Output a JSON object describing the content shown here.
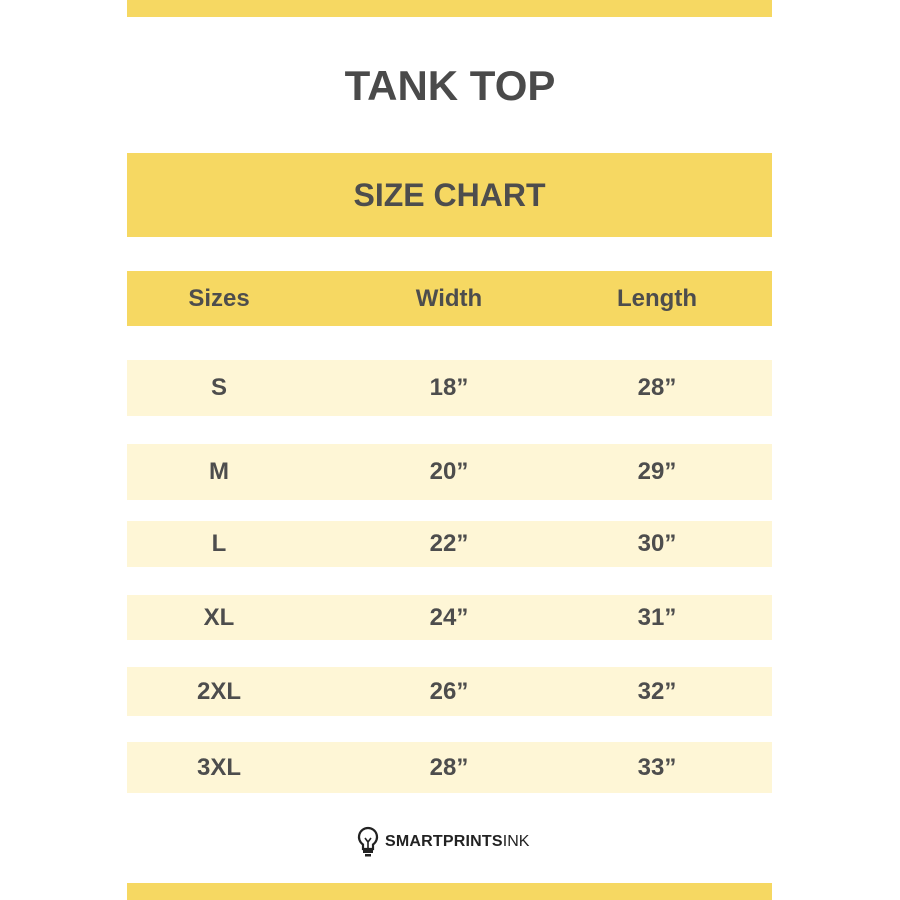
{
  "title": "TANK TOP",
  "subtitle": "SIZE CHART",
  "table": {
    "headers": [
      "Sizes",
      "Width",
      "Length"
    ],
    "rows": [
      [
        "S",
        "18”",
        "28”"
      ],
      [
        "M",
        "20”",
        "29”"
      ],
      [
        "L",
        "22”",
        "30”"
      ],
      [
        "XL",
        "24”",
        "31”"
      ],
      [
        "2XL",
        "26”",
        "32”"
      ],
      [
        "3XL",
        "28”",
        "33”"
      ]
    ]
  },
  "logo": {
    "bold": "SMARTPRINTS",
    "thin": "INK",
    "icon": "lightbulb-icon"
  },
  "colors": {
    "accent": "#f6d862",
    "row_bg": "#fef6d6",
    "text": "#4d4d4d"
  }
}
